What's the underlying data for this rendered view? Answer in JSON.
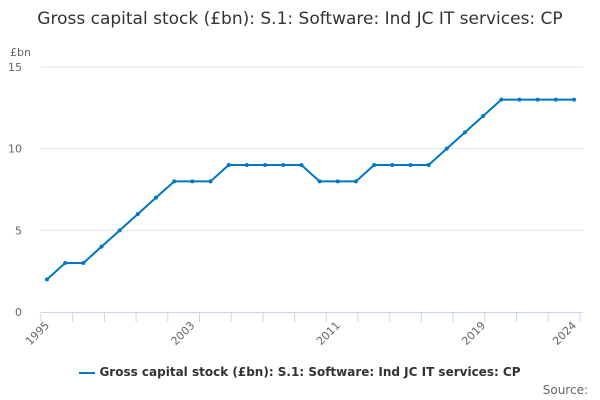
{
  "chart_data": {
    "type": "line",
    "title": "Gross capital stock (£bn): S.1: Software: Ind JC IT services: CP",
    "ylabel": "£bn",
    "xlabel": "",
    "ylim": [
      0,
      15
    ],
    "yticks": [
      0,
      5,
      10,
      15
    ],
    "xtick_labels": [
      "1995",
      "2003",
      "2011",
      "2019",
      "2024"
    ],
    "grid": true,
    "legend_placement": "bottom",
    "series": [
      {
        "name": "Gross capital stock (£bn): S.1: Software: Ind JC IT services: CP",
        "color": "#0077c0",
        "x": [
          1995,
          1996,
          1997,
          1998,
          1999,
          2000,
          2001,
          2002,
          2003,
          2004,
          2005,
          2006,
          2007,
          2008,
          2009,
          2010,
          2011,
          2012,
          2013,
          2014,
          2015,
          2016,
          2017,
          2018,
          2019,
          2020,
          2021,
          2022,
          2023,
          2024
        ],
        "values": [
          2,
          3,
          3,
          4,
          5,
          6,
          7,
          8,
          8,
          8,
          9,
          9,
          9,
          9,
          9,
          8,
          8,
          8,
          9,
          9,
          9,
          9,
          10,
          11,
          12,
          13,
          13,
          13,
          13,
          13
        ]
      }
    ]
  },
  "source_label": "Source:"
}
